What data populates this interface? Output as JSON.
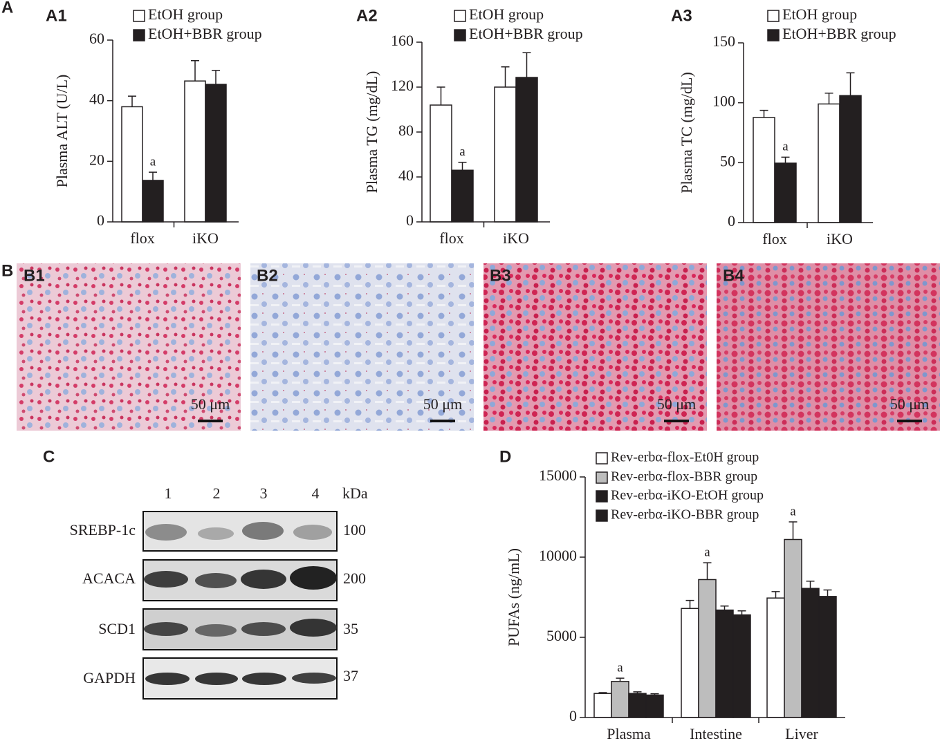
{
  "panel_a_label": "A",
  "chart_data": [
    {
      "type": "bar",
      "label": "A1",
      "y_label": "Plasma ALT (U/L)",
      "categories": [
        "flox",
        "iKO"
      ],
      "series": [
        {
          "name": "EtOH group",
          "color": "#ffffff",
          "values": [
            38,
            46.5
          ],
          "errors": [
            3.5,
            6.7
          ],
          "annotations": [
            null,
            null
          ]
        },
        {
          "name": "EtOH+BBR group",
          "color": "#231f20",
          "values": [
            13.7,
            45.4
          ],
          "errors": [
            2.7,
            4.6
          ],
          "annotations": [
            "a",
            null
          ]
        }
      ],
      "ylim": [
        0,
        60
      ],
      "yticks": [
        0,
        20,
        40,
        60
      ]
    },
    {
      "type": "bar",
      "label": "A2",
      "y_label": "Plasma TG (mg/dL)",
      "categories": [
        "flox",
        "iKO"
      ],
      "series": [
        {
          "name": "EtOH group",
          "color": "#ffffff",
          "values": [
            104,
            120
          ],
          "errors": [
            16,
            18
          ],
          "annotations": [
            null,
            null
          ]
        },
        {
          "name": "EtOH+BBR group",
          "color": "#231f20",
          "values": [
            46,
            128.6
          ],
          "errors": [
            7,
            22
          ],
          "annotations": [
            "a",
            null
          ]
        }
      ],
      "ylim": [
        0,
        160
      ],
      "yticks": [
        0,
        40,
        80,
        120,
        160
      ]
    },
    {
      "type": "bar",
      "label": "A3",
      "y_label": "Plasma TC (mg/dL)",
      "categories": [
        "flox",
        "iKO"
      ],
      "series": [
        {
          "name": "EtOH group",
          "color": "#ffffff",
          "values": [
            87.7,
            99
          ],
          "errors": [
            6,
            9
          ],
          "annotations": [
            null,
            null
          ]
        },
        {
          "name": "EtOH+BBR group",
          "color": "#231f20",
          "values": [
            49.6,
            106
          ],
          "errors": [
            5,
            19
          ],
          "annotations": [
            "a",
            null
          ]
        }
      ],
      "ylim": [
        0,
        150
      ],
      "yticks": [
        0,
        50,
        100,
        150
      ]
    },
    {
      "type": "bar",
      "label": "D",
      "y_label": "PUFAs (ng/mL)",
      "categories": [
        "Plasma",
        "Intestine",
        "Liver"
      ],
      "series": [
        {
          "name": "Rev-erbα-flox-Et0H group",
          "color": "#ffffff",
          "values": [
            1500,
            6800,
            7450
          ],
          "errors": [
            50,
            500,
            400
          ],
          "annotations": [
            null,
            null,
            null
          ]
        },
        {
          "name": "Rev-erbα-flox-BBR group",
          "color": "#bdbdbd",
          "values": [
            2250,
            8600,
            11100
          ],
          "errors": [
            200,
            1050,
            1100
          ],
          "annotations": [
            "a",
            "a",
            "a"
          ]
        },
        {
          "name": "Rev-erbα-iKO-EtOH group",
          "color": "#231f20",
          "values": [
            1500,
            6700,
            8050
          ],
          "errors": [
            100,
            250,
            450
          ],
          "annotations": [
            null,
            null,
            null
          ]
        },
        {
          "name": "Rev-erbα-iKO-BBR group",
          "color": "#231f20",
          "values": [
            1400,
            6400,
            7550
          ],
          "errors": [
            80,
            250,
            400
          ],
          "annotations": [
            null,
            null,
            null
          ]
        }
      ],
      "ylim": [
        0,
        15000
      ],
      "yticks": [
        0,
        5000,
        10000,
        15000
      ]
    }
  ],
  "histology": {
    "label": "B",
    "images": [
      {
        "label": "B1",
        "scale": "50 μm"
      },
      {
        "label": "B2",
        "scale": "50 μm"
      },
      {
        "label": "B3",
        "scale": "50 μm"
      },
      {
        "label": "B4",
        "scale": "50 μm"
      }
    ]
  },
  "blot": {
    "label": "C",
    "lanes": [
      "1",
      "2",
      "3",
      "4"
    ],
    "unit": "kDa",
    "rows": [
      {
        "protein": "SREBP-1c",
        "size": "100"
      },
      {
        "protein": "ACACA",
        "size": "200"
      },
      {
        "protein": "SCD1",
        "size": "35"
      },
      {
        "protein": "GAPDH",
        "size": "37"
      }
    ]
  }
}
